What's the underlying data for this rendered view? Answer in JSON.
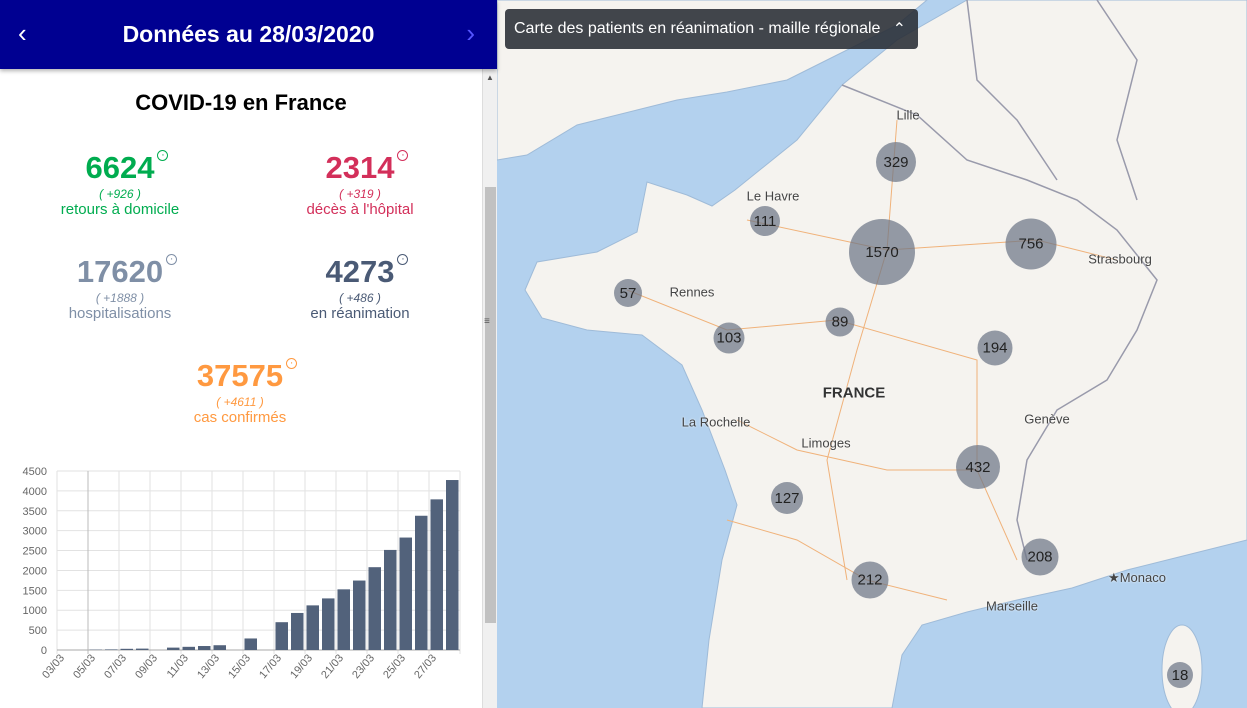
{
  "header": {
    "title": "Données au 28/03/2020",
    "prev_icon": "chevron-left",
    "next_icon": "chevron-right"
  },
  "panel": {
    "title": "COVID-19 en France"
  },
  "stats": [
    {
      "value": "6624",
      "delta": "( +926 )",
      "label": "retours à domicile",
      "color": "#00ac4f"
    },
    {
      "value": "2314",
      "delta": "( +319 )",
      "label": "décès à l'hôpital",
      "color": "#d32f5a"
    },
    {
      "value": "17620",
      "delta": "( +1888 )",
      "label": "hospitalisations",
      "color": "#7f8fa6"
    },
    {
      "value": "4273",
      "delta": "( +486 )",
      "label": "en réanimation",
      "color": "#4a5a75"
    },
    {
      "value": "37575",
      "delta": "( +4611 )",
      "label": "cas confirmés",
      "color": "#ff9940"
    }
  ],
  "chart_data": {
    "type": "bar",
    "title": "",
    "xlabel": "",
    "ylabel": "",
    "ylim": [
      0,
      4500
    ],
    "yticks": [
      "0",
      "500",
      "1000",
      "1500",
      "2000",
      "2500",
      "3000",
      "3500",
      "4000",
      "4500"
    ],
    "categories": [
      "03/03",
      "04/03",
      "05/03",
      "06/03",
      "07/03",
      "08/03",
      "09/03",
      "10/03",
      "11/03",
      "12/03",
      "13/03",
      "14/03",
      "15/03",
      "16/03",
      "17/03",
      "18/03",
      "19/03",
      "20/03",
      "21/03",
      "22/03",
      "23/03",
      "24/03",
      "25/03",
      "26/03",
      "27/03",
      "28/03"
    ],
    "xtick_labels": [
      "03/03",
      "05/03",
      "07/03",
      "09/03",
      "11/03",
      "13/03",
      "15/03",
      "17/03",
      "19/03",
      "21/03",
      "23/03",
      "25/03",
      "27/03"
    ],
    "values": [
      0,
      0,
      9,
      15,
      30,
      35,
      0,
      60,
      80,
      100,
      120,
      0,
      290,
      0,
      699,
      931,
      1122,
      1297,
      1525,
      1746,
      2082,
      2516,
      2827,
      3375,
      3787,
      4273
    ],
    "color": "#52627b",
    "grid": true
  },
  "map": {
    "title": "Carte des patients en réanimation - maille régionale",
    "collapse_icon": "chevron-up",
    "bubbles": [
      {
        "value": "329",
        "region": "Hauts-de-France"
      },
      {
        "value": "111",
        "region": "Normandie"
      },
      {
        "value": "1570",
        "region": "Île-de-France"
      },
      {
        "value": "756",
        "region": "Grand Est"
      },
      {
        "value": "57",
        "region": "Bretagne"
      },
      {
        "value": "103",
        "region": "Pays de la Loire"
      },
      {
        "value": "89",
        "region": "Centre-Val de Loire"
      },
      {
        "value": "194",
        "region": "Bourgogne-Franche-Comté"
      },
      {
        "value": "432",
        "region": "Auvergne-Rhône-Alpes"
      },
      {
        "value": "127",
        "region": "Nouvelle-Aquitaine"
      },
      {
        "value": "212",
        "region": "Occitanie"
      },
      {
        "value": "208",
        "region": "Provence-Alpes-Côte d'Azur"
      },
      {
        "value": "18",
        "region": "Corse"
      }
    ],
    "cities": [
      "Lille",
      "Le Havre",
      "Rennes",
      "Strasbourg",
      "FRANCE",
      "La Rochelle",
      "Limoges",
      "Genève",
      "Monaco",
      "Marseille"
    ]
  }
}
